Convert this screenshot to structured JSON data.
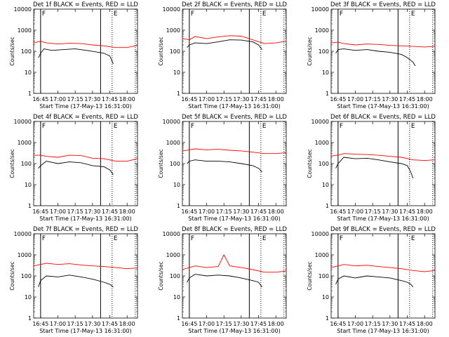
{
  "figure": {
    "xtick_labels": [
      "16:45",
      "17:00",
      "17:15",
      "17:30",
      "17:45",
      "18:00"
    ],
    "xtick_minutes": [
      0,
      15,
      30,
      45,
      60,
      75
    ],
    "x_start": "16:39",
    "x_end": "18:09",
    "ytick_labels": [
      "1",
      "10",
      "100",
      "1000",
      "10000"
    ],
    "ylabel": "Counts/sec",
    "xlabel": "Start Time (17-May-13 16:31:00)",
    "colors": {
      "events": "#000000",
      "lld": "#ff0000"
    },
    "legend_text": "BLACK = Events, RED = LLD",
    "marker_solid": [
      "16:45",
      "17:37"
    ],
    "marker_dotted": [
      "17:47",
      "18:07"
    ],
    "marker_letters": {
      "F": "16:45",
      "E": "17:47"
    }
  },
  "chart_data": [
    {
      "type": "line",
      "title": "Det 1f BLACK = Events, RED = LLD",
      "xlabel": "Start Time (17-May-13 16:31:00)",
      "ylabel": "Counts/sec",
      "ylim": [
        1,
        10000
      ],
      "yscale": "log",
      "series": [
        {
          "name": "Events",
          "color": "#000000",
          "x": [
            "16:43",
            "16:44",
            "16:45",
            "16:48",
            "16:55",
            "17:05",
            "17:15",
            "17:25",
            "17:35",
            "17:40",
            "17:45",
            "17:48"
          ],
          "values": [
            50,
            60,
            80,
            130,
            110,
            120,
            130,
            110,
            90,
            80,
            60,
            25
          ]
        },
        {
          "name": "LLD",
          "color": "#ff0000",
          "x": [
            "16:39",
            "16:45",
            "16:50",
            "17:00",
            "17:10",
            "17:20",
            "17:30",
            "17:40",
            "17:50",
            "18:00",
            "18:09"
          ],
          "values": [
            250,
            300,
            250,
            220,
            240,
            230,
            200,
            180,
            150,
            150,
            190
          ]
        }
      ]
    },
    {
      "type": "line",
      "title": "Det 2f BLACK = Events, RED = LLD",
      "xlabel": "Start Time (17-May-13 16:31:00)",
      "ylabel": "Counts/sec",
      "ylim": [
        1,
        10000
      ],
      "yscale": "log",
      "series": [
        {
          "name": "Events",
          "color": "#000000",
          "x": [
            "16:43",
            "16:45",
            "16:50",
            "17:00",
            "17:10",
            "17:20",
            "17:30",
            "17:40",
            "17:45",
            "17:48"
          ],
          "values": [
            150,
            200,
            250,
            230,
            280,
            350,
            340,
            280,
            200,
            120
          ]
        },
        {
          "name": "LLD",
          "color": "#ff0000",
          "x": [
            "16:39",
            "16:45",
            "16:50",
            "17:00",
            "17:10",
            "17:20",
            "17:30",
            "17:40",
            "17:50",
            "18:00",
            "18:09"
          ],
          "values": [
            400,
            350,
            500,
            400,
            480,
            550,
            520,
            350,
            230,
            250,
            300
          ]
        }
      ]
    },
    {
      "type": "line",
      "title": "Det 3f BLACK = Events, RED = LLD",
      "xlabel": "Start Time (17-May-13 16:31:00)",
      "ylabel": "Counts/sec",
      "ylim": [
        1,
        10000
      ],
      "yscale": "log",
      "series": [
        {
          "name": "Events",
          "color": "#000000",
          "x": [
            "16:43",
            "16:45",
            "16:50",
            "17:00",
            "17:10",
            "17:20",
            "17:30",
            "17:40",
            "17:45",
            "17:50",
            "17:52"
          ],
          "values": [
            80,
            120,
            130,
            110,
            120,
            100,
            90,
            70,
            50,
            30,
            20
          ]
        },
        {
          "name": "LLD",
          "color": "#ff0000",
          "x": [
            "16:39",
            "16:45",
            "16:50",
            "17:00",
            "17:10",
            "17:20",
            "17:30",
            "17:40",
            "17:50",
            "18:00",
            "18:09"
          ],
          "values": [
            250,
            270,
            230,
            200,
            220,
            210,
            190,
            180,
            170,
            160,
            170
          ]
        }
      ]
    },
    {
      "type": "line",
      "title": "Det 4f BLACK = Events, RED = LLD",
      "xlabel": "Start Time (17-May-13 16:31:00)",
      "ylabel": "Counts/sec",
      "ylim": [
        1,
        10000
      ],
      "yscale": "log",
      "series": [
        {
          "name": "Events",
          "color": "#000000",
          "x": [
            "16:43",
            "16:45",
            "16:50",
            "17:00",
            "17:10",
            "17:20",
            "17:30",
            "17:40",
            "17:45",
            "17:48"
          ],
          "values": [
            60,
            80,
            130,
            100,
            120,
            110,
            80,
            70,
            50,
            30
          ]
        },
        {
          "name": "LLD",
          "color": "#ff0000",
          "x": [
            "16:39",
            "16:45",
            "16:50",
            "17:00",
            "17:10",
            "17:20",
            "17:30",
            "17:40",
            "17:50",
            "18:00",
            "18:09"
          ],
          "values": [
            250,
            250,
            220,
            200,
            250,
            240,
            180,
            170,
            130,
            130,
            170
          ]
        }
      ]
    },
    {
      "type": "line",
      "title": "Det 5f BLACK = Events, RED = LLD",
      "xlabel": "Start Time (17-May-13 16:31:00)",
      "ylabel": "Counts/sec",
      "ylim": [
        1,
        10000
      ],
      "yscale": "log",
      "series": [
        {
          "name": "Events",
          "color": "#000000",
          "x": [
            "16:43",
            "16:45",
            "16:50",
            "17:00",
            "17:10",
            "17:20",
            "17:30",
            "17:40",
            "17:45",
            "17:48"
          ],
          "values": [
            100,
            130,
            150,
            130,
            130,
            120,
            100,
            80,
            60,
            40
          ]
        },
        {
          "name": "LLD",
          "color": "#ff0000",
          "x": [
            "16:39",
            "16:45",
            "16:50",
            "17:00",
            "17:10",
            "17:20",
            "17:30",
            "17:40",
            "17:50",
            "18:00",
            "18:09"
          ],
          "values": [
            400,
            450,
            500,
            450,
            480,
            430,
            400,
            350,
            300,
            300,
            330
          ]
        }
      ]
    },
    {
      "type": "line",
      "title": "Det 6f BLACK = Events, RED = LLD",
      "xlabel": "Start Time (17-May-13 16:31:00)",
      "ylabel": "Counts/sec",
      "ylim": [
        1,
        10000
      ],
      "yscale": "log",
      "series": [
        {
          "name": "Events",
          "color": "#000000",
          "x": [
            "16:43",
            "16:45",
            "16:50",
            "17:00",
            "17:10",
            "17:20",
            "17:30",
            "17:40",
            "17:45",
            "17:48",
            "17:50"
          ],
          "values": [
            60,
            100,
            200,
            170,
            180,
            150,
            120,
            100,
            80,
            40,
            20
          ]
        },
        {
          "name": "LLD",
          "color": "#ff0000",
          "x": [
            "16:39",
            "16:45",
            "16:50",
            "17:00",
            "17:10",
            "17:20",
            "17:30",
            "17:40",
            "17:50",
            "18:00",
            "18:09"
          ],
          "values": [
            230,
            250,
            300,
            280,
            270,
            250,
            220,
            200,
            150,
            140,
            150
          ]
        }
      ]
    },
    {
      "type": "line",
      "title": "Det 7f BLACK = Events, RED = LLD",
      "xlabel": "Start Time (17-May-13 16:31:00)",
      "ylabel": "Counts/sec",
      "ylim": [
        1,
        10000
      ],
      "yscale": "log",
      "series": [
        {
          "name": "Events",
          "color": "#000000",
          "x": [
            "16:43",
            "16:45",
            "16:50",
            "17:00",
            "17:10",
            "17:20",
            "17:30",
            "17:40",
            "17:45",
            "17:48"
          ],
          "values": [
            30,
            60,
            100,
            90,
            110,
            90,
            70,
            50,
            40,
            30
          ]
        },
        {
          "name": "LLD",
          "color": "#ff0000",
          "x": [
            "16:39",
            "16:45",
            "16:50",
            "17:00",
            "17:10",
            "17:20",
            "17:30",
            "17:40",
            "17:50",
            "18:00",
            "18:09"
          ],
          "values": [
            300,
            350,
            400,
            350,
            380,
            330,
            300,
            280,
            250,
            220,
            240
          ]
        }
      ]
    },
    {
      "type": "line",
      "title": "Det 8f BLACK = Events, RED = LLD",
      "xlabel": "Start Time (17-May-13 16:31:00)",
      "ylabel": "Counts/sec",
      "ylim": [
        1,
        10000
      ],
      "yscale": "log",
      "series": [
        {
          "name": "Events",
          "color": "#000000",
          "x": [
            "16:43",
            "16:45",
            "16:50",
            "17:00",
            "17:10",
            "17:20",
            "17:30",
            "17:40",
            "17:45",
            "17:48"
          ],
          "values": [
            50,
            80,
            120,
            100,
            110,
            100,
            80,
            60,
            50,
            30
          ]
        },
        {
          "name": "LLD",
          "color": "#ff0000",
          "x": [
            "16:39",
            "16:45",
            "16:50",
            "17:00",
            "17:10",
            "17:15",
            "17:20",
            "17:30",
            "17:40",
            "17:50",
            "18:00",
            "18:09"
          ],
          "values": [
            200,
            250,
            300,
            250,
            280,
            1000,
            300,
            250,
            200,
            150,
            150,
            170
          ]
        }
      ]
    },
    {
      "type": "line",
      "title": "Det 9f BLACK = Events, RED = LLD",
      "xlabel": "Start Time (17-May-13 16:31:00)",
      "ylabel": "Counts/sec",
      "ylim": [
        1,
        10000
      ],
      "yscale": "log",
      "series": [
        {
          "name": "Events",
          "color": "#000000",
          "x": [
            "16:43",
            "16:45",
            "16:50",
            "17:00",
            "17:10",
            "17:20",
            "17:30",
            "17:40",
            "17:45",
            "17:48",
            "17:50"
          ],
          "values": [
            40,
            70,
            100,
            80,
            100,
            90,
            80,
            60,
            50,
            40,
            30
          ]
        },
        {
          "name": "LLD",
          "color": "#ff0000",
          "x": [
            "16:39",
            "16:45",
            "16:50",
            "17:00",
            "17:10",
            "17:20",
            "17:30",
            "17:40",
            "17:50",
            "18:00",
            "18:09"
          ],
          "values": [
            250,
            300,
            350,
            300,
            320,
            280,
            250,
            220,
            180,
            160,
            180
          ]
        }
      ]
    }
  ]
}
